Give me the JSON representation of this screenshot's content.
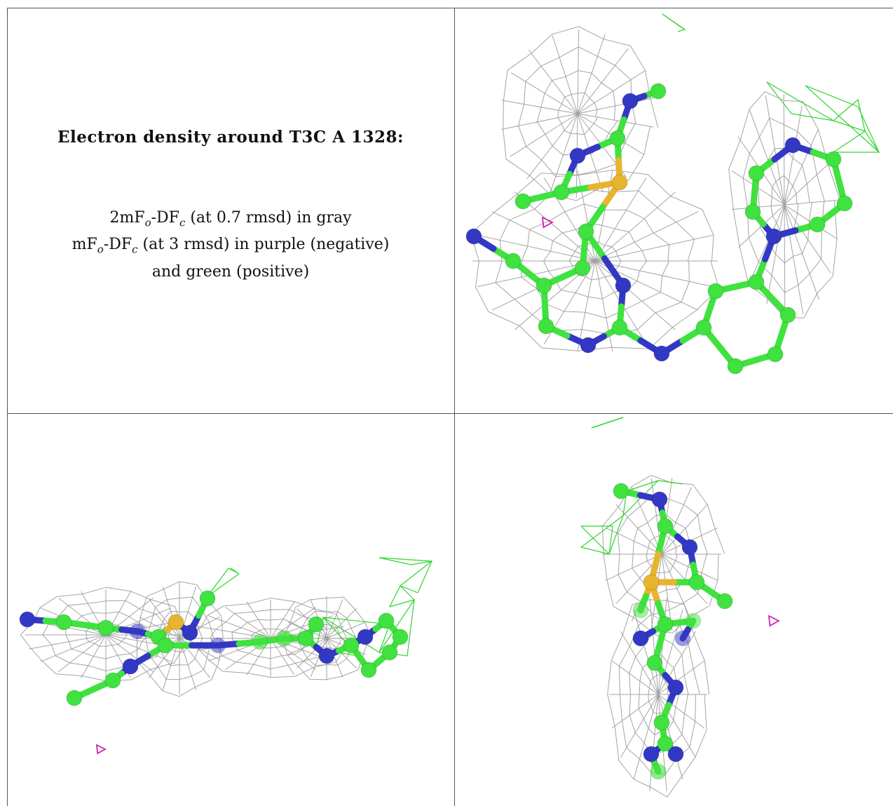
{
  "title": "Electron density around T3C A 1328:",
  "legend": {
    "line1": {
      "a": "2mF",
      "a_sub": "o",
      "b": "-DF",
      "b_sub": "c",
      "rest": " (at 0.7 rmsd) in gray"
    },
    "line2": {
      "a": "mF",
      "a_sub": "o",
      "b": "-DF",
      "b_sub": "c",
      "rest": " (at 3 rmsd) in purple (negative)"
    },
    "line3": "and green (positive)"
  },
  "colors": {
    "carbon": "#3fe23f",
    "nitrogen": "#3338c4",
    "sulfur": "#e8b430",
    "mesh_gray": "#9a9a9a",
    "mesh_green": "#2fd42f",
    "mesh_purple": "#d020b0",
    "grid_line": "#555555"
  }
}
